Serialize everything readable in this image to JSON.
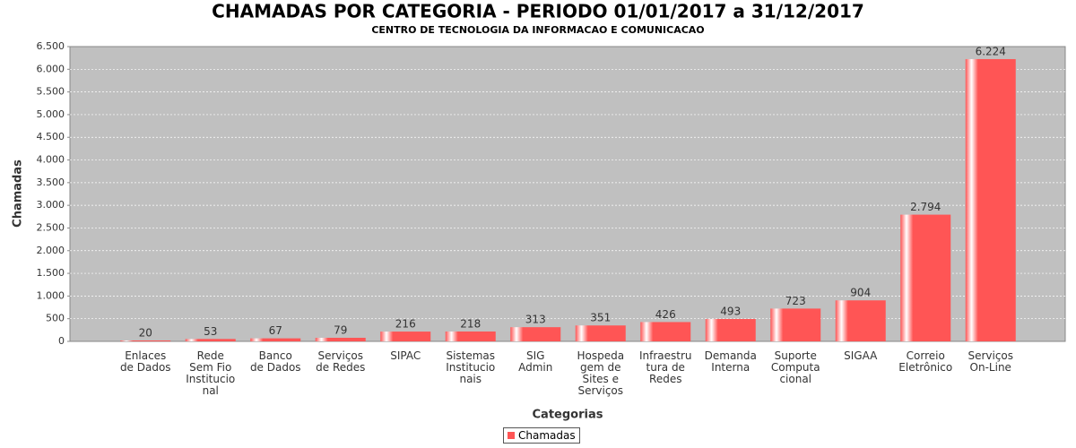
{
  "chart_data": {
    "type": "bar",
    "title": "CHAMADAS POR CATEGORIA - PERIODO 01/01/2017 a 31/12/2017",
    "subtitle": "CENTRO DE TECNOLOGIA DA INFORMACAO E COMUNICACAO",
    "x_label": "Categorias",
    "y_label": "Chamadas",
    "categories": [
      "Enlaces\nde Dados",
      "Rede\nSem Fio\nInstitucio\nnal",
      "Banco\nde Dados",
      "Serviços\nde Redes",
      "SIPAC",
      "Sistemas\nInstitucio\nnais",
      "SIG\nAdmin",
      "Hospeda\ngem de\nSites e\nServiços",
      "Infraestru\ntura de\nRedes",
      "Demanda\nInterna",
      "Suporte\nComputa\ncional",
      "SIGAA",
      "Correio\nEletrônico",
      "Serviços\nOn-Line"
    ],
    "series": [
      {
        "name": "Chamadas",
        "color": "#ff5555",
        "values": [
          20,
          53,
          67,
          79,
          216,
          218,
          313,
          351,
          426,
          493,
          723,
          904,
          2794,
          6224
        ],
        "value_labels": [
          "20",
          "53",
          "67",
          "79",
          "216",
          "218",
          "313",
          "351",
          "426",
          "493",
          "723",
          "904",
          "2.794",
          "6.224"
        ]
      }
    ],
    "ylim": [
      0,
      6500
    ],
    "yticks": [
      0,
      500,
      {
        "value": 1000,
        "label": "1.000"
      },
      {
        "value": 1500,
        "label": "1.500"
      },
      {
        "value": 2000,
        "label": "2.000"
      },
      {
        "value": 2500,
        "label": "2.500"
      },
      {
        "value": 3000,
        "label": "3.000"
      },
      {
        "value": 3500,
        "label": "3.500"
      },
      {
        "value": 4000,
        "label": "4.000"
      },
      {
        "value": 4500,
        "label": "4.500"
      },
      {
        "value": 5000,
        "label": "5.000"
      },
      {
        "value": 5500,
        "label": "5.500"
      },
      {
        "value": 6000,
        "label": "6.000"
      },
      {
        "value": 6500,
        "label": "6.500"
      }
    ],
    "grid": true,
    "legend": "bottom"
  }
}
